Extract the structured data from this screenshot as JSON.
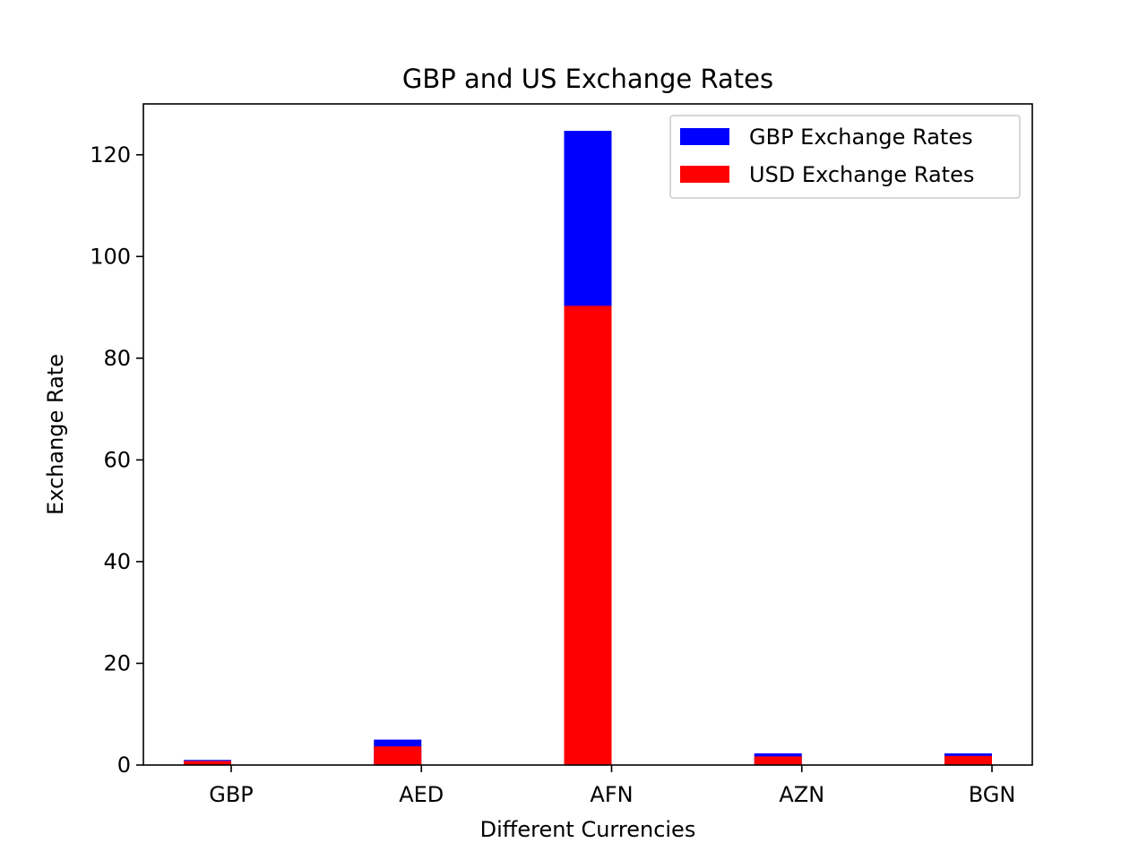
{
  "chart_data": {
    "type": "bar",
    "title": "GBP and US Exchange Rates",
    "xlabel": "Different Currencies",
    "ylabel": "Exchange Rate",
    "categories": [
      "GBP",
      "AED",
      "AFN",
      "AZN",
      "BGN"
    ],
    "ylim": [
      0,
      130
    ],
    "yticks": [
      0,
      20,
      40,
      60,
      80,
      100,
      120
    ],
    "grid": false,
    "legend_position": "top-right",
    "series": [
      {
        "name": "GBP Exchange Rates",
        "color": "#0000ff",
        "values": [
          1.0,
          5.0,
          124.7,
          2.3,
          2.3
        ]
      },
      {
        "name": "USD Exchange Rates",
        "color": "#ff0000",
        "values": [
          0.8,
          3.67,
          90.3,
          1.7,
          1.8
        ]
      }
    ]
  }
}
